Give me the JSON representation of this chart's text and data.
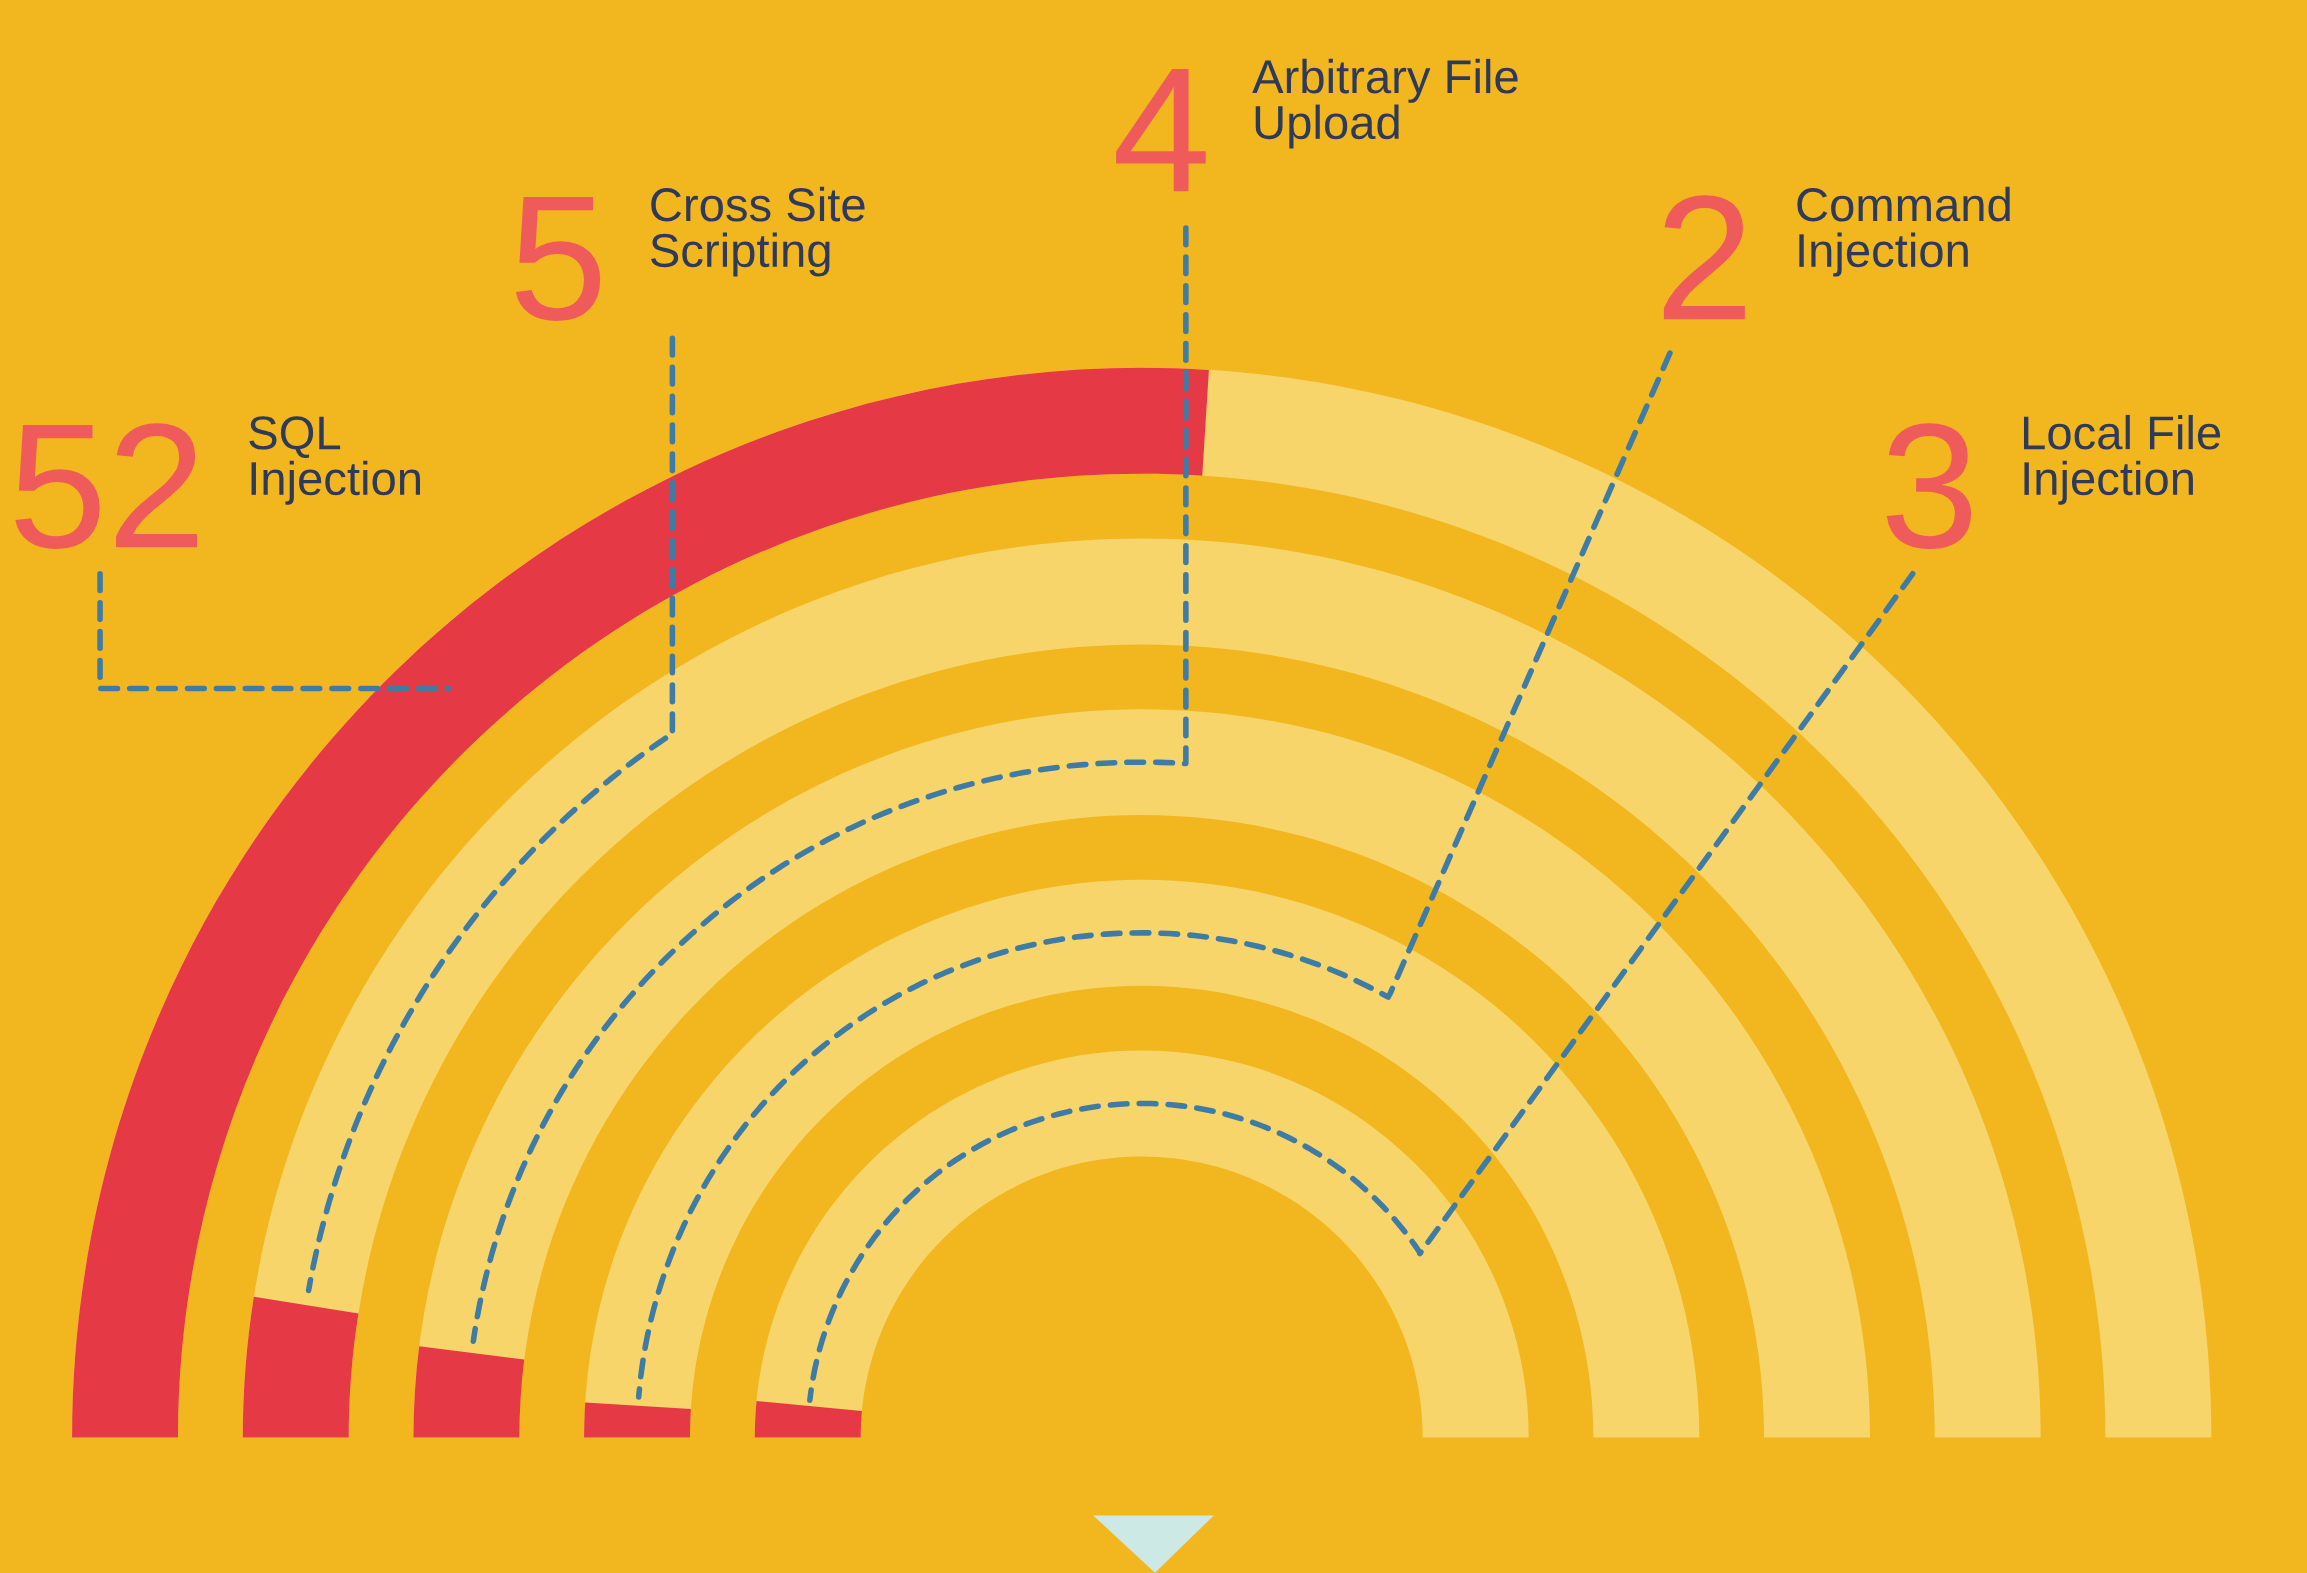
{
  "chart_data": {
    "type": "other",
    "categories": [
      "SQL Injection",
      "Cross Site Scripting",
      "Arbitrary File Upload",
      "Command Injection",
      "Local File Injection"
    ],
    "values": [
      52,
      5,
      4,
      2,
      3
    ],
    "colors": [
      "#e63946",
      "#e63946",
      "#e63946",
      "#e63946",
      "#e63946"
    ],
    "data_labels": true
  }
}
